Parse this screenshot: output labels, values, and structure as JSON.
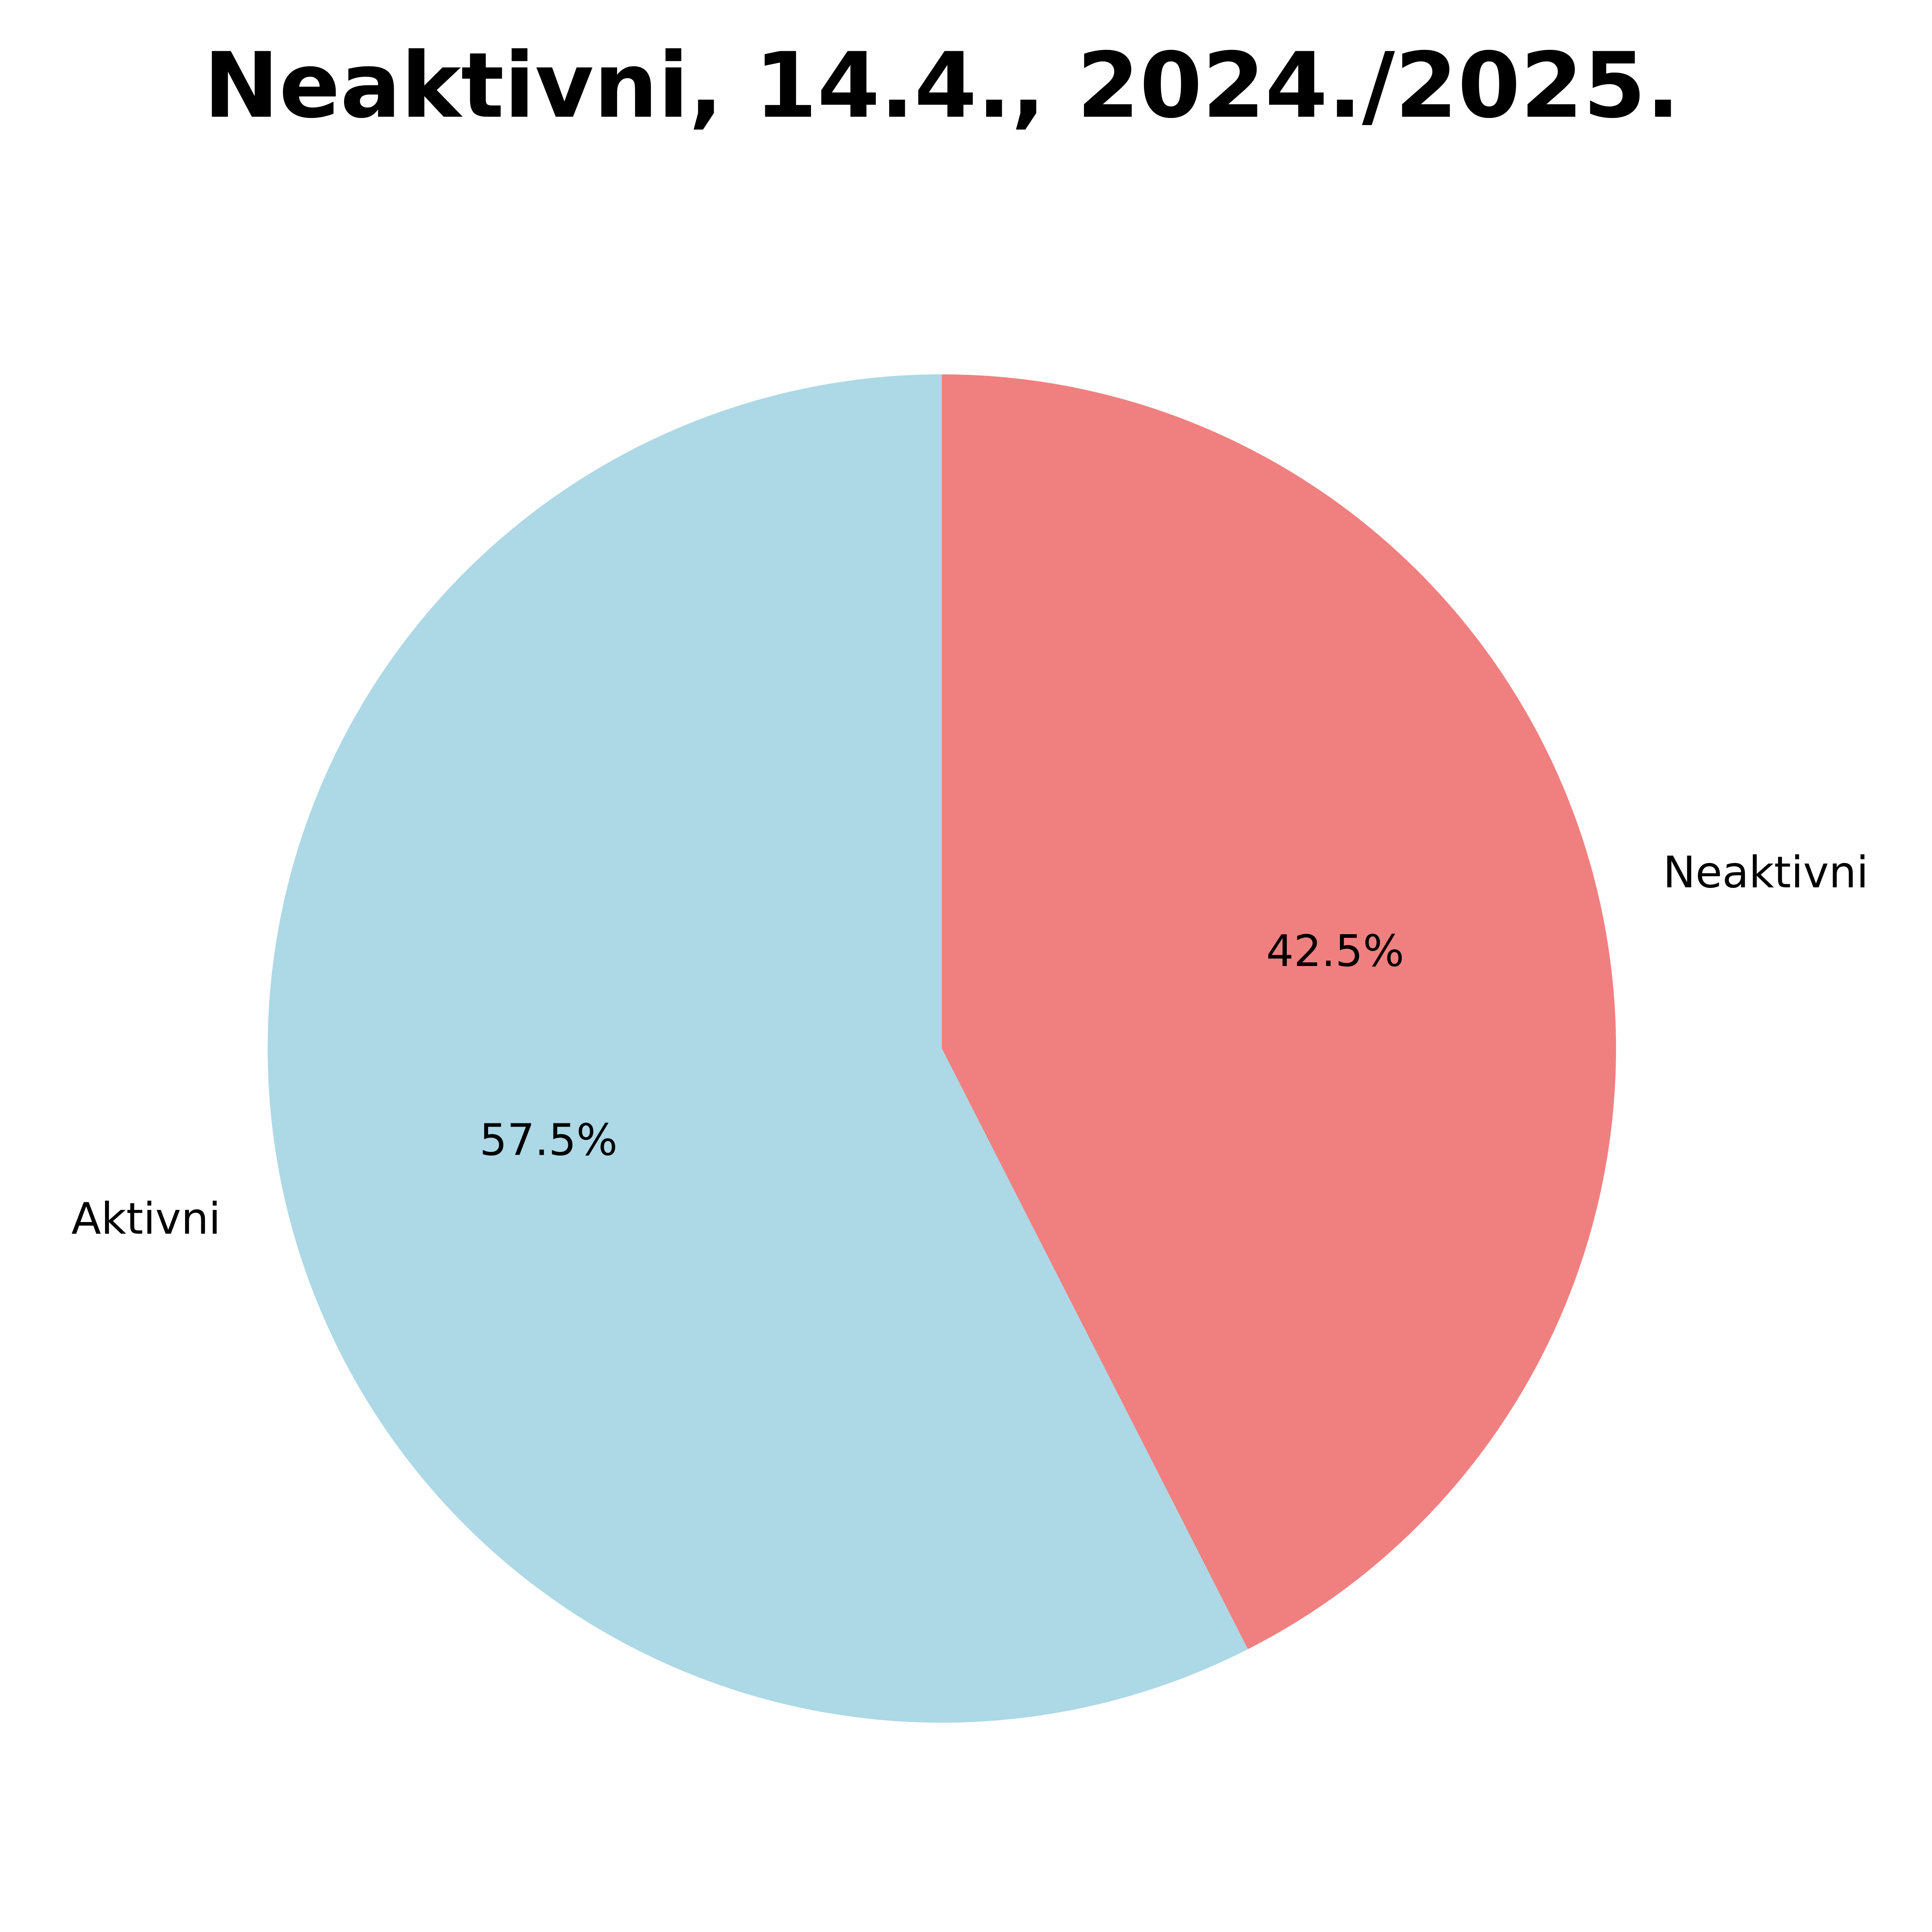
{
  "chart_data": {
    "type": "pie",
    "title": "Neaktivni, 14.4., 2024./2025.",
    "labels": [
      "Neaktivni",
      "Aktivni"
    ],
    "values": [
      42.5,
      57.5
    ],
    "percent_labels": [
      "42.5%",
      "57.5%"
    ],
    "colors": [
      "#f08080",
      "#add8e6"
    ],
    "start_angle": "top (12 o'clock)",
    "direction": "clockwise"
  }
}
